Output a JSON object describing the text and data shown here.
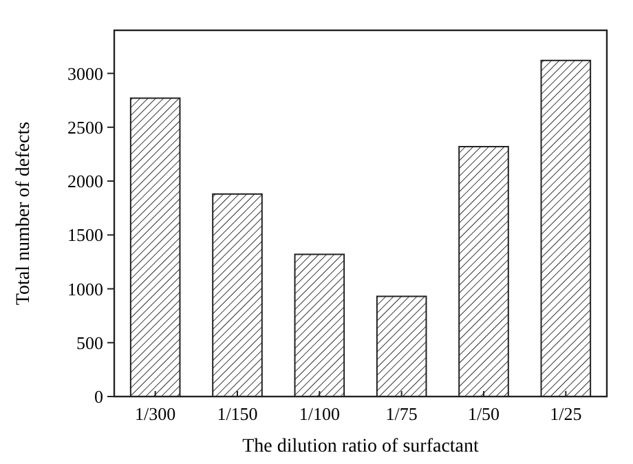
{
  "chart_data": {
    "type": "bar",
    "xlabel": "The dilution ratio of surfactant",
    "ylabel": "Total number of defects",
    "categories": [
      "1/300",
      "1/150",
      "1/100",
      "1/75",
      "1/50",
      "1/25"
    ],
    "values": [
      2770,
      1880,
      1320,
      930,
      2320,
      3120
    ],
    "color": "#222222",
    "ylim": [
      0,
      3400
    ],
    "yticks": [
      0,
      500,
      1000,
      1500,
      2000,
      2500,
      3000
    ],
    "grid": false
  }
}
